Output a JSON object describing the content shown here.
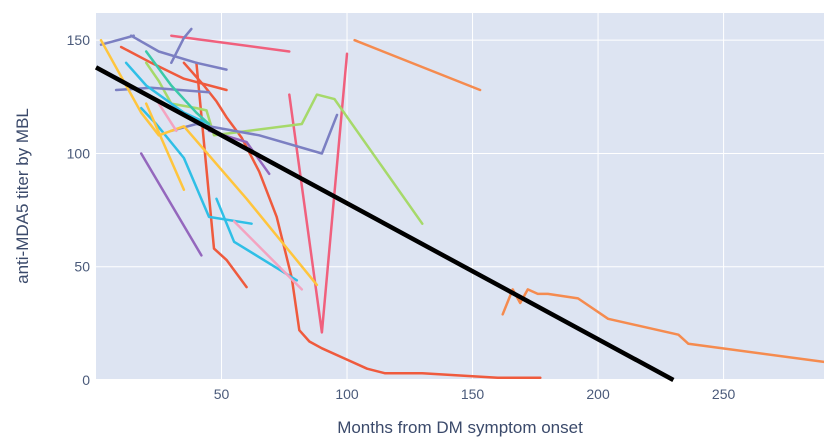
{
  "chart_data": {
    "type": "line",
    "title": "",
    "xlabel": "Months from DM symptom onset",
    "ylabel": "anti-MDA5 titer by MBL",
    "xlim": [
      0,
      290
    ],
    "ylim": [
      0,
      162
    ],
    "xticks": [
      50,
      100,
      150,
      200,
      250
    ],
    "yticks": [
      0,
      50,
      100,
      150
    ],
    "grid": true,
    "legend": "none",
    "colors": {
      "plot_bg": "#dde4f2",
      "grid": "#ffffff",
      "paper_bg": "#ffffff",
      "trend": "#000000"
    },
    "trend_line": {
      "x": [
        0,
        230
      ],
      "y": [
        138,
        0
      ]
    },
    "series": [
      {
        "color": "#f58b4f",
        "x": [
          103,
          153
        ],
        "y": [
          150,
          128
        ]
      },
      {
        "color": "#f58b4f",
        "x": [
          162,
          166,
          169,
          172,
          176,
          180,
          192,
          204,
          232,
          236,
          290
        ],
        "y": [
          29,
          40,
          34,
          40,
          38,
          38,
          36,
          27,
          20,
          16,
          8
        ]
      },
      {
        "color": "#f0607d",
        "x": [
          30,
          77
        ],
        "y": [
          152,
          145
        ]
      },
      {
        "color": "#f0607d",
        "x": [
          77,
          90,
          100
        ],
        "y": [
          126,
          21,
          144
        ]
      },
      {
        "color": "#ef5a3d",
        "x": [
          35,
          43,
          48,
          52,
          58,
          65,
          72,
          78,
          81,
          85,
          90,
          100,
          108,
          115,
          130,
          145,
          160,
          177
        ],
        "y": [
          140,
          130,
          123,
          116,
          107,
          92,
          72,
          45,
          22,
          17,
          14,
          9,
          5,
          3,
          3,
          2,
          1,
          1
        ]
      },
      {
        "color": "#ef5a3d",
        "x": [
          40,
          47,
          52,
          60
        ],
        "y": [
          140,
          58,
          53,
          41
        ]
      },
      {
        "color": "#ef5a3d",
        "x": [
          10,
          22,
          35,
          52
        ],
        "y": [
          147,
          140,
          133,
          128
        ]
      },
      {
        "color": "#a6d96a",
        "x": [
          20,
          25,
          30,
          40,
          44,
          47,
          82,
          88,
          95,
          130
        ],
        "y": [
          140,
          132,
          122,
          120,
          119,
          108,
          113,
          126,
          124,
          69
        ]
      },
      {
        "color": "#7b7fc2",
        "x": [
          2,
          15
        ],
        "y": [
          148,
          152
        ]
      },
      {
        "color": "#7b7fc2",
        "x": [
          14,
          25,
          40,
          52
        ],
        "y": [
          152,
          145,
          140,
          137
        ]
      },
      {
        "color": "#7b7fc2",
        "x": [
          30,
          35,
          38
        ],
        "y": [
          140,
          151,
          155
        ]
      },
      {
        "color": "#7b7fc2",
        "x": [
          8,
          22,
          45
        ],
        "y": [
          128,
          129,
          127
        ]
      },
      {
        "color": "#7b7fc2",
        "x": [
          30,
          40,
          65,
          90,
          96
        ],
        "y": [
          110,
          113,
          108,
          100,
          117
        ]
      },
      {
        "color": "#9467bd",
        "x": [
          18,
          42
        ],
        "y": [
          100,
          55
        ]
      },
      {
        "color": "#9467bd",
        "x": [
          45,
          60,
          69
        ],
        "y": [
          110,
          105,
          91
        ]
      },
      {
        "color": "#2fbfe6",
        "x": [
          18,
          24,
          35,
          45,
          62
        ],
        "y": [
          120,
          113,
          98,
          72,
          69
        ]
      },
      {
        "color": "#2fbfe6",
        "x": [
          48,
          55,
          80
        ],
        "y": [
          80,
          61,
          44
        ]
      },
      {
        "color": "#2fbfe6",
        "x": [
          12,
          20,
          35,
          45
        ],
        "y": [
          140,
          130,
          118,
          113
        ]
      },
      {
        "color": "#3bc9a9",
        "x": [
          20,
          30,
          40,
          45
        ],
        "y": [
          145,
          130,
          118,
          113
        ]
      },
      {
        "color": "#ffc53d",
        "x": [
          2,
          13,
          18,
          25,
          35,
          60,
          88
        ],
        "y": [
          150,
          128,
          118,
          108,
          112,
          80,
          42
        ]
      },
      {
        "color": "#ffc53d",
        "x": [
          20,
          35
        ],
        "y": [
          122,
          84
        ]
      },
      {
        "color": "#f4a3c0",
        "x": [
          25,
          32
        ],
        "y": [
          122,
          110
        ]
      },
      {
        "color": "#f4a3c0",
        "x": [
          55,
          82
        ],
        "y": [
          70,
          40
        ]
      }
    ]
  }
}
